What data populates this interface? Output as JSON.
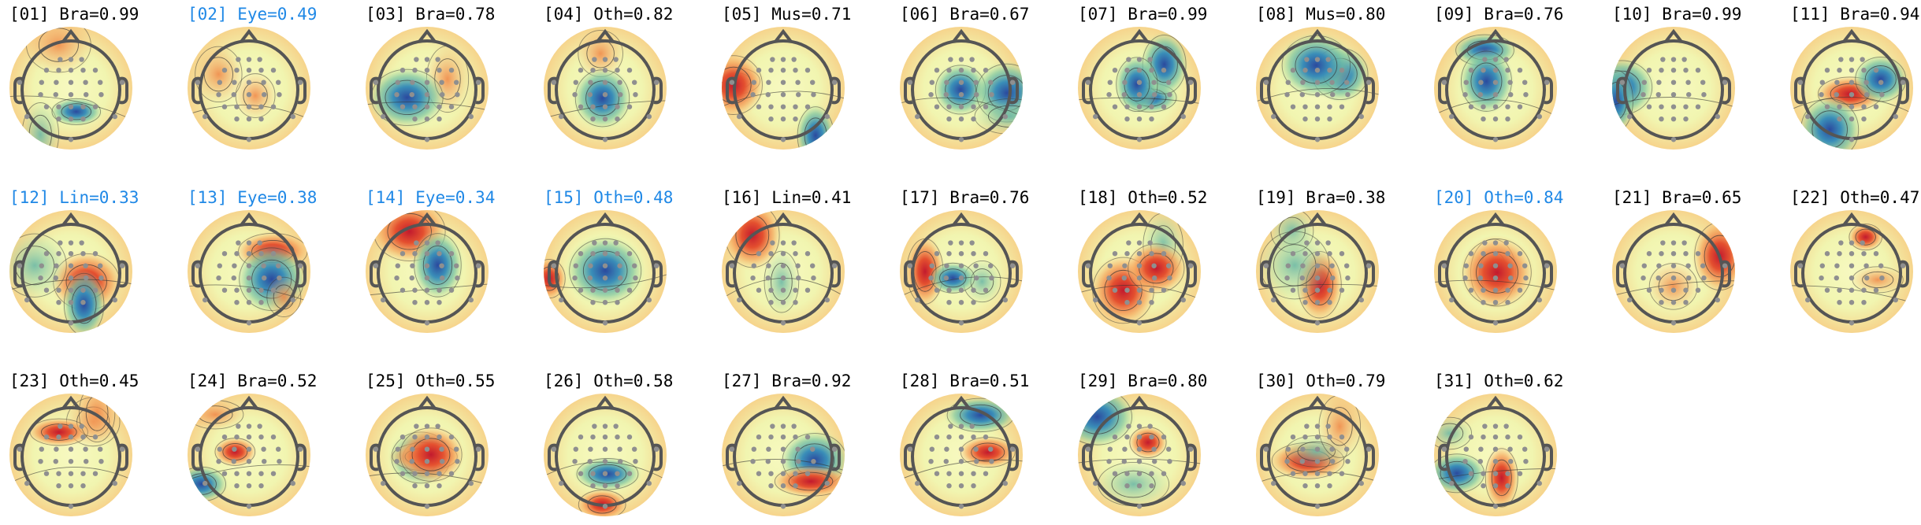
{
  "components": [
    {
      "title": "[01] Bra=0.99",
      "excluded": false
    },
    {
      "title": "[02] Eye=0.49",
      "excluded": true
    },
    {
      "title": "[03] Bra=0.78",
      "excluded": false
    },
    {
      "title": "[04] Oth=0.82",
      "excluded": false
    },
    {
      "title": "[05] Mus=0.71",
      "excluded": false
    },
    {
      "title": "[06] Bra=0.67",
      "excluded": false
    },
    {
      "title": "[07] Bra=0.99",
      "excluded": false
    },
    {
      "title": "[08] Mus=0.80",
      "excluded": false
    },
    {
      "title": "[09] Bra=0.76",
      "excluded": false
    },
    {
      "title": "[10] Bra=0.99",
      "excluded": false
    },
    {
      "title": "[11] Bra=0.94",
      "excluded": false
    },
    {
      "title": "[12] Lin=0.33",
      "excluded": true
    },
    {
      "title": "[13] Eye=0.38",
      "excluded": true
    },
    {
      "title": "[14] Eye=0.34",
      "excluded": true
    },
    {
      "title": "[15] Oth=0.48",
      "excluded": true
    },
    {
      "title": "[16] Lin=0.41",
      "excluded": false
    },
    {
      "title": "[17] Bra=0.76",
      "excluded": false
    },
    {
      "title": "[18] Oth=0.52",
      "excluded": false
    },
    {
      "title": "[19] Bra=0.38",
      "excluded": false
    },
    {
      "title": "[20] Oth=0.84",
      "excluded": true
    },
    {
      "title": "[21] Bra=0.65",
      "excluded": false
    },
    {
      "title": "[22] Oth=0.47",
      "excluded": false
    },
    {
      "title": "[23] Oth=0.45",
      "excluded": false
    },
    {
      "title": "[24] Bra=0.52",
      "excluded": false
    },
    {
      "title": "[25] Oth=0.55",
      "excluded": false
    },
    {
      "title": "[26] Oth=0.58",
      "excluded": false
    },
    {
      "title": "[27] Bra=0.92",
      "excluded": false
    },
    {
      "title": "[28] Bra=0.51",
      "excluded": false
    },
    {
      "title": "[29] Bra=0.80",
      "excluded": false
    },
    {
      "title": "[30] Oth=0.79",
      "excluded": false
    },
    {
      "title": "[31] Oth=0.62",
      "excluded": false
    }
  ],
  "highlight_color": "#1f88e6"
}
